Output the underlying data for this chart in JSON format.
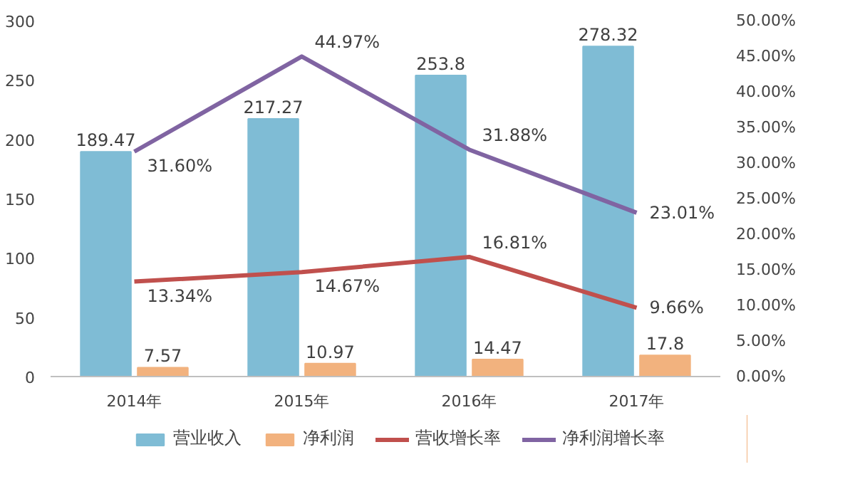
{
  "chart_data": {
    "type": "bar",
    "categories": [
      "2014年",
      "2015年",
      "2016年",
      "2017年"
    ],
    "ylim": [
      0,
      300
    ],
    "yticks": [
      0,
      50,
      100,
      150,
      200,
      250,
      300
    ],
    "y2lim": [
      0,
      50
    ],
    "y2ticks": [
      {
        "value": 0,
        "label": "0.00%"
      },
      {
        "value": 5,
        "label": "5.00%"
      },
      {
        "value": 10,
        "label": "10.00%"
      },
      {
        "value": 15,
        "label": "15.00%"
      },
      {
        "value": 20,
        "label": "20.00%"
      },
      {
        "value": 25,
        "label": "25.00%"
      },
      {
        "value": 30,
        "label": "30.00%"
      },
      {
        "value": 35,
        "label": "35.00%"
      },
      {
        "value": 40,
        "label": "40.00%"
      },
      {
        "value": 45,
        "label": "45.00%"
      },
      {
        "value": 50,
        "label": "50.00%"
      }
    ],
    "grid": false,
    "legend": "bottom",
    "series": [
      {
        "name": "营业收入",
        "color": "#7fbcd5",
        "values": [
          189.47,
          217.27,
          253.8,
          278.32
        ],
        "value_labels": [
          "189.47",
          "217.27",
          "253.8",
          "278.32"
        ]
      },
      {
        "name": "净利润",
        "color": "#f2b27e",
        "values": [
          7.57,
          10.97,
          14.47,
          17.8
        ],
        "value_labels": [
          "7.57",
          "10.97",
          "14.47",
          "17.8"
        ]
      },
      {
        "name": "营收增长率",
        "type": "line",
        "axis": "y2",
        "color": "#c0504d",
        "values": [
          13.34,
          14.67,
          16.81,
          9.66
        ],
        "value_labels": [
          "13.34%",
          "14.67%",
          "16.81%",
          "9.66%"
        ]
      },
      {
        "name": "净利润增长率",
        "type": "line",
        "axis": "y2",
        "color": "#8064a2",
        "values": [
          31.6,
          44.97,
          31.88,
          23.01
        ],
        "value_labels": [
          "31.60%",
          "44.97%",
          "31.88%",
          "23.01%"
        ]
      }
    ]
  }
}
